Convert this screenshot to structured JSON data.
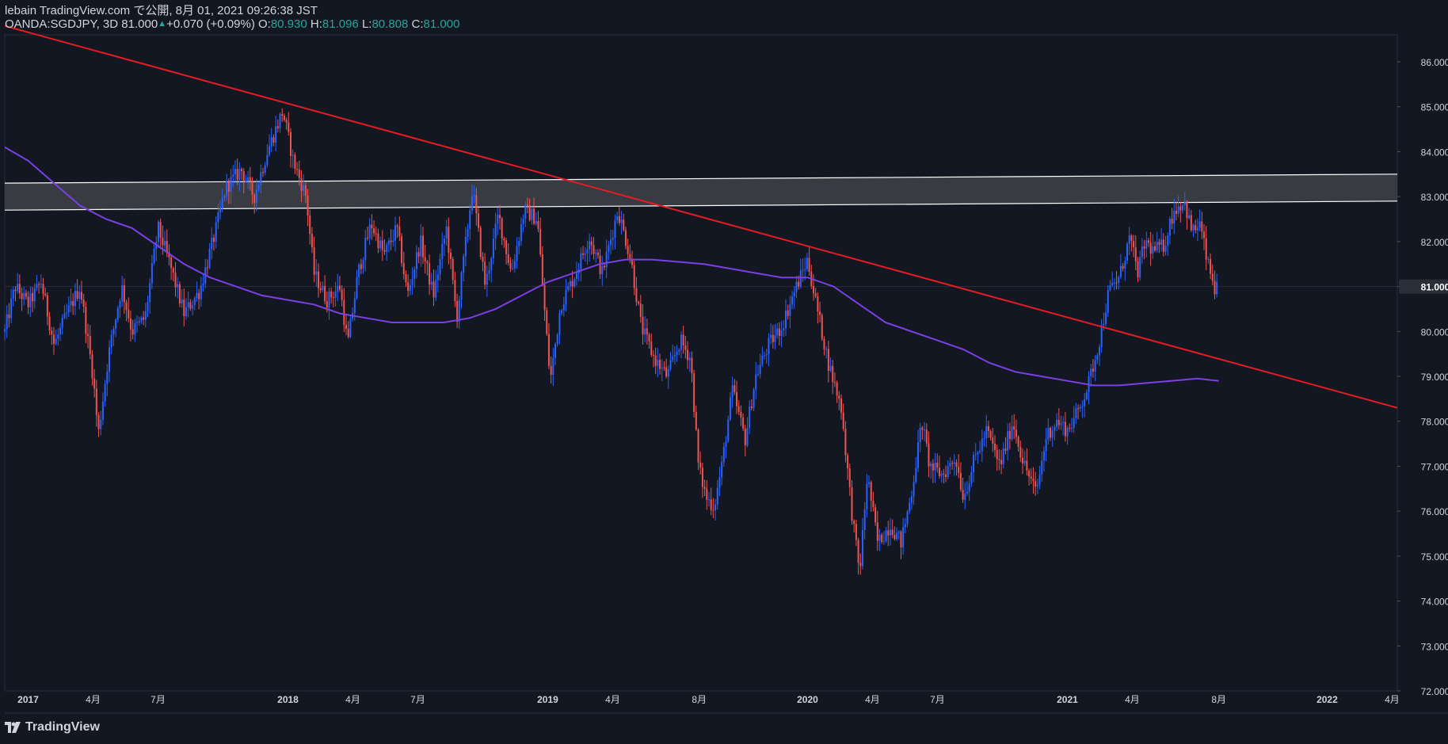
{
  "header": {
    "line1": "lebain TradingView.com で公開, 8月 01, 2021 09:26:38 JST",
    "symbol": "OANDA:SGDJPY, 3D",
    "last": "81.000",
    "change": "+0.070 (+0.09%)",
    "o_label": "O:",
    "o_value": "80.930",
    "h_label": "H:",
    "h_value": "81.096",
    "l_label": "L:",
    "l_value": "80.808",
    "c_label": "C:",
    "c_value": "81.000"
  },
  "footer": {
    "brand": "TradingView"
  },
  "colors": {
    "background": "#131722",
    "up": "#2962ff",
    "down": "#ef5350",
    "trendline": "#e51c23",
    "ma": "#7b3fe4",
    "zone_fill": "#3a3d45",
    "zone_border": "#ffffff",
    "axis_text": "#d1d4dc",
    "grid": "#1e222d"
  },
  "chart_data": {
    "type": "candlestick",
    "title": "OANDA:SGDJPY, 3D",
    "symbol": "SGDJPY",
    "timeframe": "3D",
    "y_axis": {
      "ticks": [
        "72.000",
        "73.000",
        "74.000",
        "75.000",
        "76.000",
        "77.000",
        "78.000",
        "79.000",
        "80.000",
        "81.000",
        "82.000",
        "83.000",
        "84.000",
        "85.000",
        "86.000"
      ],
      "range": [
        72.0,
        86.6
      ],
      "last_price_label": "81.000"
    },
    "x_axis": {
      "ticks": [
        {
          "label": "2017",
          "t": 2017.0
        },
        {
          "label": "4月",
          "t": 2017.25
        },
        {
          "label": "7月",
          "t": 2017.5
        },
        {
          "label": "2018",
          "t": 2018.0
        },
        {
          "label": "4月",
          "t": 2018.25
        },
        {
          "label": "7月",
          "t": 2018.5
        },
        {
          "label": "2019",
          "t": 2019.0
        },
        {
          "label": "4月",
          "t": 2019.25
        },
        {
          "label": "8月",
          "t": 2019.583
        },
        {
          "label": "2020",
          "t": 2020.0
        },
        {
          "label": "4月",
          "t": 2020.25
        },
        {
          "label": "7月",
          "t": 2020.5
        },
        {
          "label": "2021",
          "t": 2021.0
        },
        {
          "label": "4月",
          "t": 2021.25
        },
        {
          "label": "8月",
          "t": 2021.583
        },
        {
          "label": "2022",
          "t": 2022.0
        },
        {
          "label": "4月",
          "t": 2022.25
        }
      ],
      "range": [
        2016.91,
        2022.27
      ]
    },
    "price_anchors": [
      [
        2016.91,
        80.0
      ],
      [
        2016.95,
        81.0
      ],
      [
        2017.0,
        80.6
      ],
      [
        2017.05,
        81.1
      ],
      [
        2017.1,
        79.7
      ],
      [
        2017.15,
        80.4
      ],
      [
        2017.2,
        81.0
      ],
      [
        2017.25,
        79.0
      ],
      [
        2017.27,
        77.7
      ],
      [
        2017.31,
        79.5
      ],
      [
        2017.36,
        81.0
      ],
      [
        2017.4,
        80.0
      ],
      [
        2017.45,
        80.3
      ],
      [
        2017.5,
        82.3
      ],
      [
        2017.54,
        81.6
      ],
      [
        2017.6,
        80.4
      ],
      [
        2017.66,
        80.9
      ],
      [
        2017.72,
        82.2
      ],
      [
        2017.76,
        83.2
      ],
      [
        2017.82,
        83.6
      ],
      [
        2017.87,
        83.0
      ],
      [
        2017.92,
        84.0
      ],
      [
        2017.98,
        84.9
      ],
      [
        2018.02,
        83.8
      ],
      [
        2018.07,
        83.0
      ],
      [
        2018.1,
        81.3
      ],
      [
        2018.15,
        80.7
      ],
      [
        2018.2,
        81.0
      ],
      [
        2018.23,
        79.7
      ],
      [
        2018.27,
        81.3
      ],
      [
        2018.32,
        82.4
      ],
      [
        2018.37,
        81.7
      ],
      [
        2018.42,
        82.3
      ],
      [
        2018.46,
        80.8
      ],
      [
        2018.51,
        82.0
      ],
      [
        2018.56,
        80.8
      ],
      [
        2018.61,
        82.3
      ],
      [
        2018.65,
        80.3
      ],
      [
        2018.71,
        83.2
      ],
      [
        2018.76,
        81.0
      ],
      [
        2018.81,
        82.6
      ],
      [
        2018.86,
        81.3
      ],
      [
        2018.91,
        82.7
      ],
      [
        2018.96,
        82.5
      ],
      [
        2018.99,
        80.3
      ],
      [
        2019.01,
        78.9
      ],
      [
        2019.05,
        80.6
      ],
      [
        2019.1,
        81.2
      ],
      [
        2019.16,
        82.1
      ],
      [
        2019.21,
        81.3
      ],
      [
        2019.27,
        82.7
      ],
      [
        2019.32,
        81.6
      ],
      [
        2019.36,
        80.1
      ],
      [
        2019.41,
        79.4
      ],
      [
        2019.46,
        79.0
      ],
      [
        2019.51,
        79.8
      ],
      [
        2019.55,
        79.4
      ],
      [
        2019.58,
        77.0
      ],
      [
        2019.61,
        76.3
      ],
      [
        2019.64,
        76.1
      ],
      [
        2019.67,
        77.0
      ],
      [
        2019.71,
        78.7
      ],
      [
        2019.76,
        77.6
      ],
      [
        2019.8,
        79.0
      ],
      [
        2019.85,
        79.7
      ],
      [
        2019.9,
        80.1
      ],
      [
        2019.95,
        80.9
      ],
      [
        2020.0,
        81.6
      ],
      [
        2020.03,
        80.7
      ],
      [
        2020.08,
        79.3
      ],
      [
        2020.13,
        78.3
      ],
      [
        2020.17,
        76.0
      ],
      [
        2020.2,
        74.6
      ],
      [
        2020.23,
        76.8
      ],
      [
        2020.27,
        75.3
      ],
      [
        2020.32,
        75.7
      ],
      [
        2020.36,
        75.3
      ],
      [
        2020.4,
        76.4
      ],
      [
        2020.44,
        78.0
      ],
      [
        2020.47,
        77.0
      ],
      [
        2020.52,
        76.8
      ],
      [
        2020.57,
        77.2
      ],
      [
        2020.6,
        76.3
      ],
      [
        2020.64,
        77.1
      ],
      [
        2020.69,
        77.8
      ],
      [
        2020.74,
        77.0
      ],
      [
        2020.79,
        78.0
      ],
      [
        2020.83,
        77.1
      ],
      [
        2020.88,
        76.4
      ],
      [
        2020.92,
        77.7
      ],
      [
        2020.96,
        78.0
      ],
      [
        2021.0,
        77.8
      ],
      [
        2021.04,
        78.2
      ],
      [
        2021.08,
        78.8
      ],
      [
        2021.12,
        79.7
      ],
      [
        2021.16,
        80.9
      ],
      [
        2021.2,
        81.2
      ],
      [
        2021.24,
        82.1
      ],
      [
        2021.27,
        81.3
      ],
      [
        2021.3,
        82.0
      ],
      [
        2021.33,
        81.8
      ],
      [
        2021.37,
        81.9
      ],
      [
        2021.41,
        82.7
      ],
      [
        2021.45,
        82.9
      ],
      [
        2021.48,
        82.2
      ],
      [
        2021.51,
        82.4
      ],
      [
        2021.54,
        81.5
      ],
      [
        2021.57,
        80.9
      ],
      [
        2021.583,
        81.0
      ]
    ],
    "ma_anchors": [
      [
        2016.91,
        84.1
      ],
      [
        2017.0,
        83.8
      ],
      [
        2017.1,
        83.3
      ],
      [
        2017.2,
        82.8
      ],
      [
        2017.3,
        82.5
      ],
      [
        2017.4,
        82.3
      ],
      [
        2017.5,
        81.9
      ],
      [
        2017.6,
        81.5
      ],
      [
        2017.7,
        81.2
      ],
      [
        2017.8,
        81.0
      ],
      [
        2017.9,
        80.8
      ],
      [
        2018.0,
        80.7
      ],
      [
        2018.1,
        80.6
      ],
      [
        2018.2,
        80.4
      ],
      [
        2018.3,
        80.3
      ],
      [
        2018.4,
        80.2
      ],
      [
        2018.5,
        80.2
      ],
      [
        2018.6,
        80.2
      ],
      [
        2018.7,
        80.3
      ],
      [
        2018.8,
        80.5
      ],
      [
        2018.9,
        80.8
      ],
      [
        2019.0,
        81.1
      ],
      [
        2019.1,
        81.3
      ],
      [
        2019.2,
        81.5
      ],
      [
        2019.3,
        81.6
      ],
      [
        2019.4,
        81.6
      ],
      [
        2019.5,
        81.55
      ],
      [
        2019.6,
        81.5
      ],
      [
        2019.7,
        81.4
      ],
      [
        2019.8,
        81.3
      ],
      [
        2019.9,
        81.2
      ],
      [
        2020.0,
        81.2
      ],
      [
        2020.1,
        81.0
      ],
      [
        2020.2,
        80.6
      ],
      [
        2020.3,
        80.2
      ],
      [
        2020.4,
        80.0
      ],
      [
        2020.5,
        79.8
      ],
      [
        2020.6,
        79.6
      ],
      [
        2020.7,
        79.3
      ],
      [
        2020.8,
        79.1
      ],
      [
        2020.9,
        79.0
      ],
      [
        2021.0,
        78.9
      ],
      [
        2021.1,
        78.8
      ],
      [
        2021.2,
        78.8
      ],
      [
        2021.3,
        78.85
      ],
      [
        2021.4,
        78.9
      ],
      [
        2021.5,
        78.95
      ],
      [
        2021.583,
        78.9
      ]
    ],
    "trendline": {
      "start": [
        2016.91,
        86.8
      ],
      "end": [
        2022.27,
        78.3
      ]
    },
    "resistance_zone": {
      "start": [
        2016.91,
        82.7,
        83.3
      ],
      "end": [
        2022.27,
        82.9,
        83.5
      ]
    },
    "series": [
      {
        "name": "SGDJPY 3D candles",
        "kind": "candlestick"
      },
      {
        "name": "Moving average",
        "kind": "line"
      },
      {
        "name": "Descending trendline",
        "kind": "line"
      },
      {
        "name": "Resistance zone",
        "kind": "band"
      }
    ]
  }
}
